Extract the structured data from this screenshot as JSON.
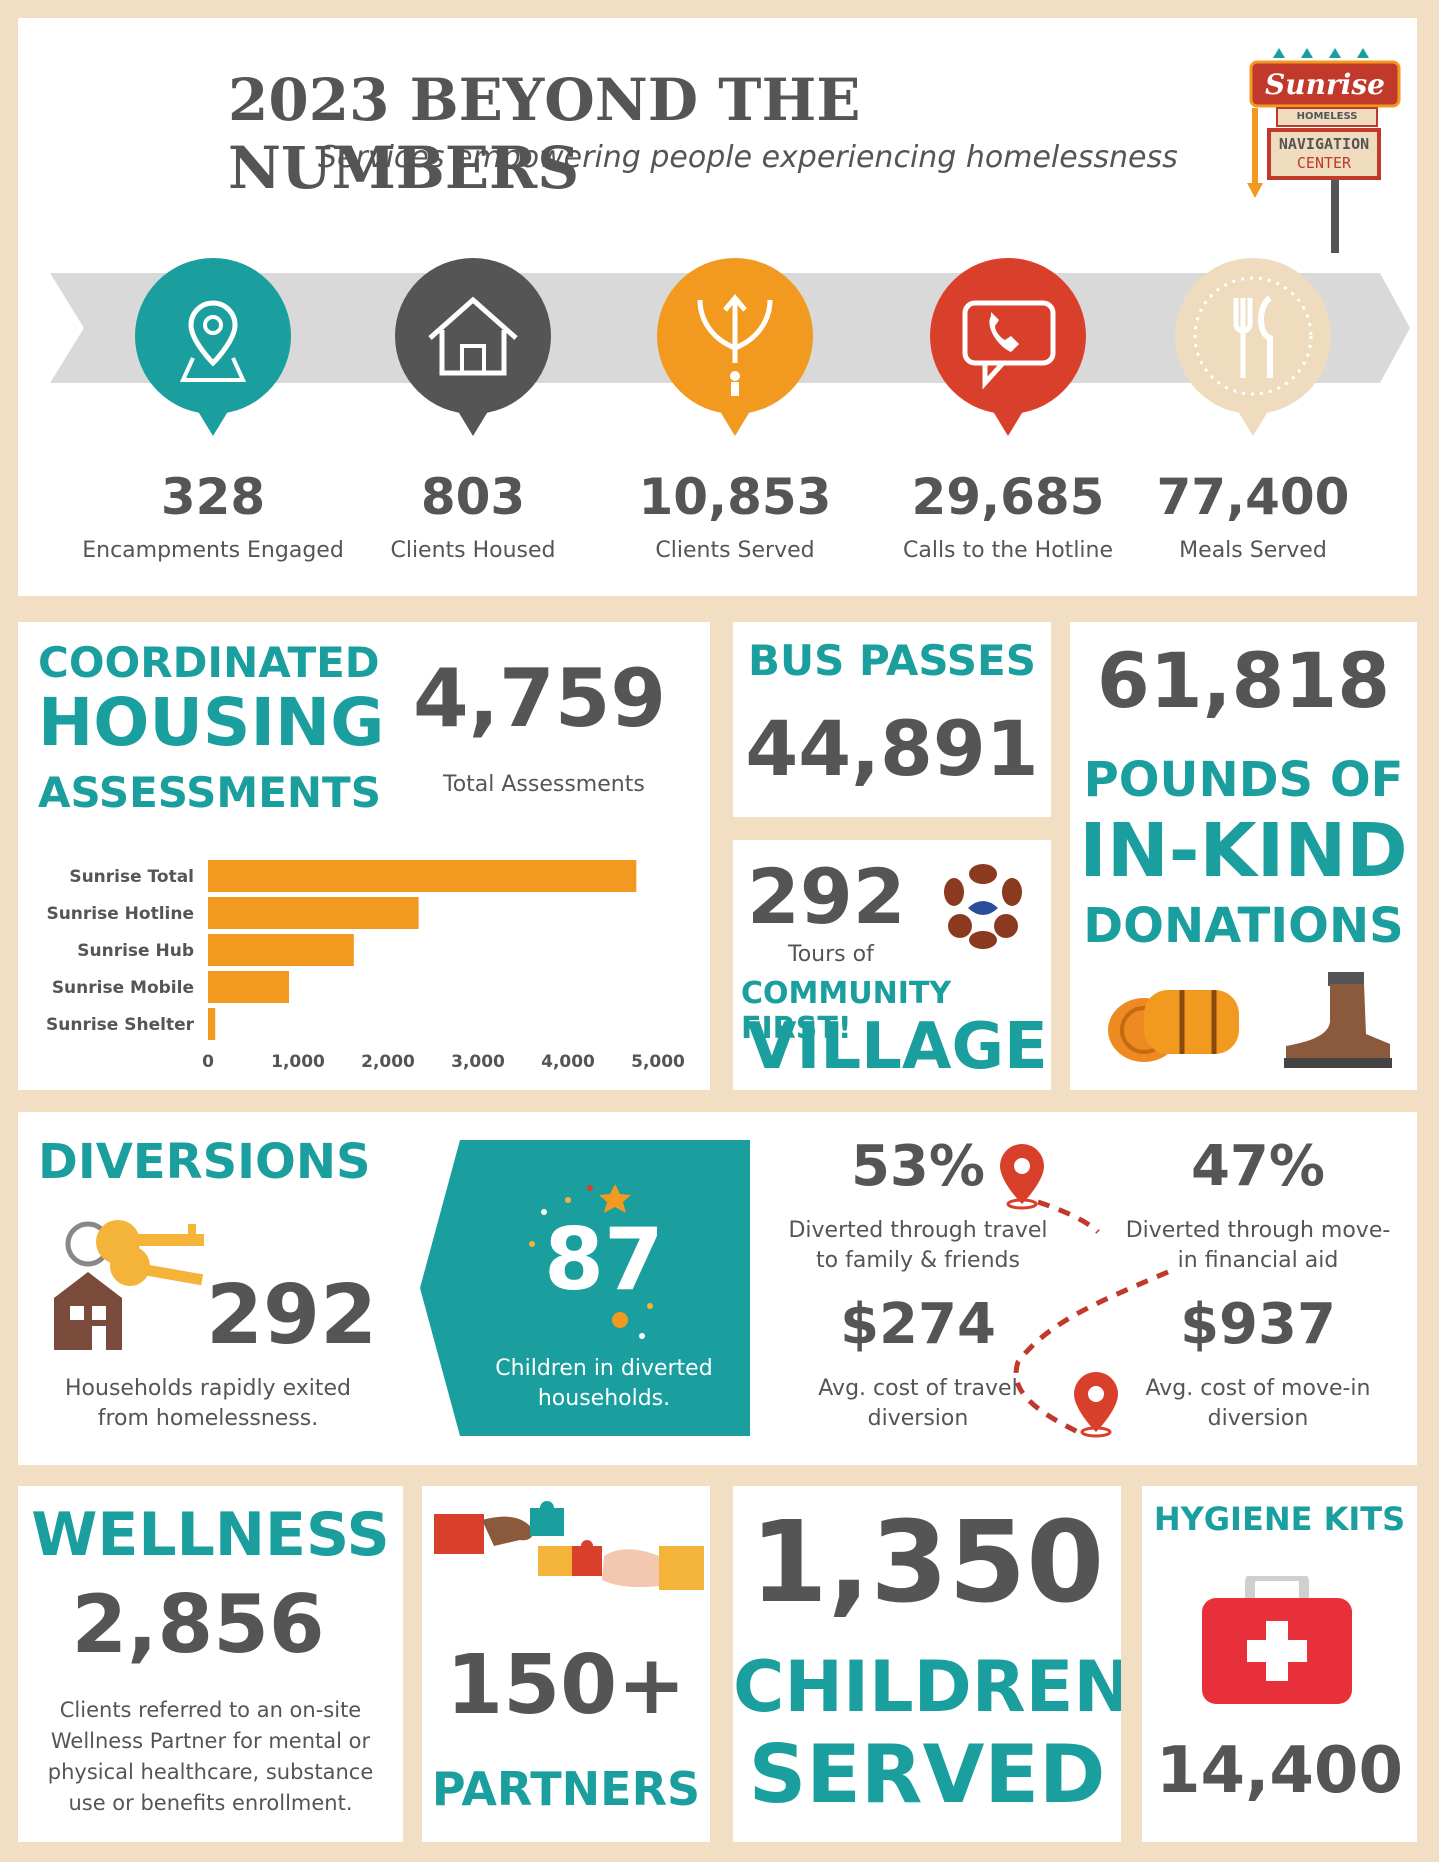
{
  "header": {
    "title": "2023 BEYOND THE NUMBERS",
    "subtitle": "Services empowering people experiencing homelessness",
    "logo": {
      "brand": "Sunrise",
      "line1": "HOMELESS",
      "line2": "NAVIGATION",
      "line3": "CENTER"
    }
  },
  "stats": [
    {
      "value": "328",
      "label": "Encampments Engaged",
      "icon": "location-pin-icon",
      "color": "#1a9e9e"
    },
    {
      "value": "803",
      "label": "Clients Housed",
      "icon": "house-icon",
      "color": "#555555"
    },
    {
      "value": "10,853",
      "label": "Clients Served",
      "icon": "branching-arrows-icon",
      "color": "#f29a1f"
    },
    {
      "value": "29,685",
      "label": "Calls to the Hotline",
      "icon": "phone-chat-icon",
      "color": "#d9402b"
    },
    {
      "value": "77,400",
      "label": "Meals Served",
      "icon": "fork-knife-icon",
      "color": "#efdcbe"
    }
  ],
  "housing": {
    "title1": "COORDINATED",
    "title2": "HOUSING",
    "title3": "ASSESSMENTS",
    "total": "4,759",
    "total_label": "Total Assessments",
    "chart_data": {
      "type": "bar",
      "orientation": "horizontal",
      "categories": [
        "Sunrise Total",
        "Sunrise Hotline",
        "Sunrise Hub",
        "Sunrise Mobile",
        "Sunrise Shelter"
      ],
      "values": [
        4759,
        2340,
        1620,
        900,
        80
      ],
      "xlim": [
        0,
        5000
      ],
      "ticks": [
        "0",
        "1,000",
        "2,000",
        "3,000",
        "4,000",
        "5,000"
      ],
      "tick_values": [
        0,
        1000,
        2000,
        3000,
        4000,
        5000
      ],
      "color": "#f29a1f"
    }
  },
  "bus": {
    "title": "BUS PASSES",
    "value": "44,891"
  },
  "tours": {
    "value": "292",
    "label": "Tours of",
    "line1": "COMMUNITY FIRST!",
    "line2": "VILLAGE"
  },
  "inkind": {
    "value": "61,818",
    "line1": "POUNDS OF",
    "line2": "IN-KIND",
    "line3": "DONATIONS"
  },
  "diversions": {
    "title": "DIVERSIONS",
    "value": "292",
    "label1": "Households rapidly exited",
    "label2": "from homelessness.",
    "children_value": "87",
    "children_label1": "Children in diverted",
    "children_label2": "households.",
    "travel_pct": "53%",
    "travel_label1": "Diverted through travel",
    "travel_label2": "to family & friends",
    "movein_pct": "47%",
    "movein_label1": "Diverted through move-",
    "movein_label2": "in financial aid",
    "travel_cost": "$274",
    "travel_cost_label1": "Avg. cost of travel",
    "travel_cost_label2": "diversion",
    "movein_cost": "$937",
    "movein_cost_label1": "Avg. cost of move-in",
    "movein_cost_label2": "diversion"
  },
  "wellness": {
    "title": "WELLNESS",
    "value": "2,856",
    "lines": [
      "Clients referred to an on-site",
      "Wellness Partner for mental or",
      "physical healthcare, substance",
      "use or benefits enrollment."
    ]
  },
  "partners": {
    "value": "150+",
    "label": "PARTNERS"
  },
  "children": {
    "value": "1,350",
    "line1": "CHILDREN",
    "line2": "SERVED"
  },
  "hygiene": {
    "title": "HYGIENE KITS",
    "value": "14,400"
  },
  "colors": {
    "teal": "#1a9e9e",
    "gray": "#555555",
    "orange": "#f29a1f",
    "red": "#d9402b",
    "beige": "#efdcbe"
  }
}
